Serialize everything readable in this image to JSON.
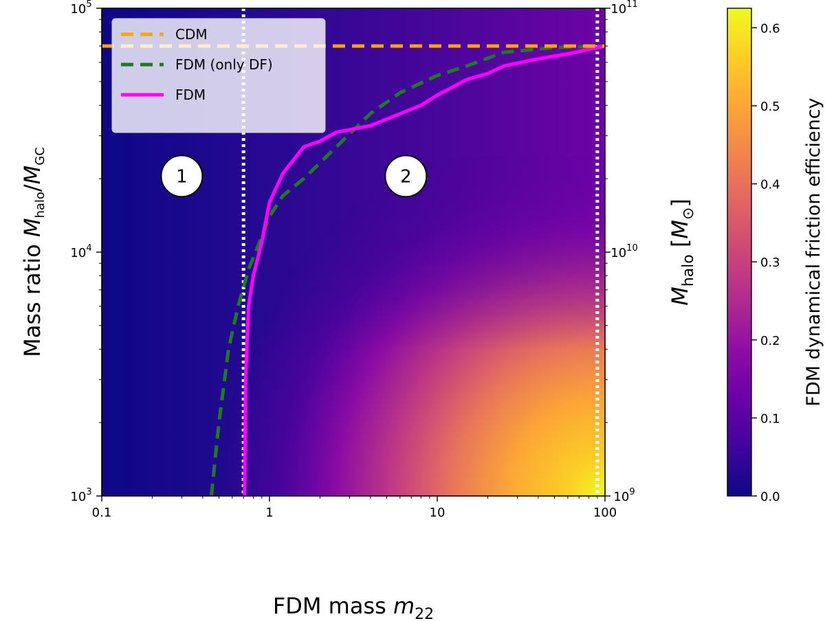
{
  "chart_data": {
    "type": "heatmap",
    "title": "",
    "xlabel": "FDM mass m22",
    "ylabel_left": "Mass ratio Mhalo/MGC",
    "ylabel_right": "Mhalo [M⊙]",
    "colorbar_label": "FDM dynamical friction efficiency",
    "x_scale": "log",
    "y_scale": "log",
    "xlim": [
      0.1,
      100
    ],
    "ylim_left": [
      1000,
      100000
    ],
    "ylim_right": [
      1000000000.0,
      100000000000.0
    ],
    "x_ticks": [
      {
        "value": 0.1,
        "label": "0.1"
      },
      {
        "value": 1,
        "label": "1"
      },
      {
        "value": 10,
        "label": "10"
      },
      {
        "value": 100,
        "label": "100"
      }
    ],
    "y_ticks_left": [
      {
        "value": 1000,
        "base": "10",
        "exp": "3"
      },
      {
        "value": 10000,
        "base": "10",
        "exp": "4"
      },
      {
        "value": 100000,
        "base": "10",
        "exp": "5"
      }
    ],
    "y_ticks_right": [
      {
        "value": 1000,
        "base": "10",
        "exp": "9"
      },
      {
        "value": 10000,
        "base": "10",
        "exp": "10"
      },
      {
        "value": 100000,
        "base": "10",
        "exp": "11"
      }
    ],
    "colorbar": {
      "colormap": "plasma",
      "range": [
        0,
        0.625
      ],
      "ticks": [
        {
          "value": 0.0,
          "label": "0.0"
        },
        {
          "value": 0.1,
          "label": "0.1"
        },
        {
          "value": 0.2,
          "label": "0.2"
        },
        {
          "value": 0.3,
          "label": "0.3"
        },
        {
          "value": 0.4,
          "label": "0.4"
        },
        {
          "value": 0.5,
          "label": "0.5"
        },
        {
          "value": 0.6,
          "label": "0.6"
        }
      ]
    },
    "series": [
      {
        "name": "CDM",
        "style": "dashed",
        "color": "#ffa500",
        "x": [
          0.1,
          100
        ],
        "y": [
          70000,
          70000
        ]
      },
      {
        "name": "FDM (only DF)",
        "style": "dashed",
        "color": "#1e7b1e",
        "x": [
          0.45,
          0.5,
          0.57,
          0.65,
          0.75,
          0.85,
          1.0,
          1.2,
          1.6,
          2.5,
          4.0,
          6.0,
          10.0,
          15.0,
          25.0,
          50.0,
          100.0
        ],
        "y": [
          1000,
          2000,
          4000,
          6000,
          8500,
          10500,
          14000,
          17000,
          20000,
          27000,
          37000,
          45000,
          53000,
          58000,
          66000,
          69000,
          70000
        ]
      },
      {
        "name": "FDM",
        "style": "solid",
        "color": "#ff00ff",
        "x": [
          0.71,
          0.72,
          0.75,
          0.8,
          0.9,
          1.0,
          1.2,
          1.6,
          2.0,
          2.5,
          4.0,
          8.0,
          10.0,
          15.0,
          20.0,
          25.0,
          40.0,
          60.0,
          100.0
        ],
        "y": [
          1000,
          3000,
          6000,
          8000,
          11000,
          16000,
          21000,
          27000,
          28500,
          31000,
          33000,
          40000,
          44000,
          51000,
          54000,
          58000,
          62000,
          65000,
          70000
        ]
      }
    ],
    "boundaries": [
      {
        "x": 0.7,
        "style": "dotted",
        "color": "#ffffff"
      },
      {
        "x": 90,
        "style": "dotted",
        "color": "#ffffff"
      }
    ],
    "regions": [
      {
        "label": "1",
        "x": 0.3,
        "y": 20500
      },
      {
        "label": "2",
        "x": 6.5,
        "y": 20500
      }
    ],
    "legend": {
      "placement": "upper-left",
      "entries": [
        "CDM",
        "FDM (only DF)",
        "FDM"
      ]
    },
    "grid": false
  }
}
